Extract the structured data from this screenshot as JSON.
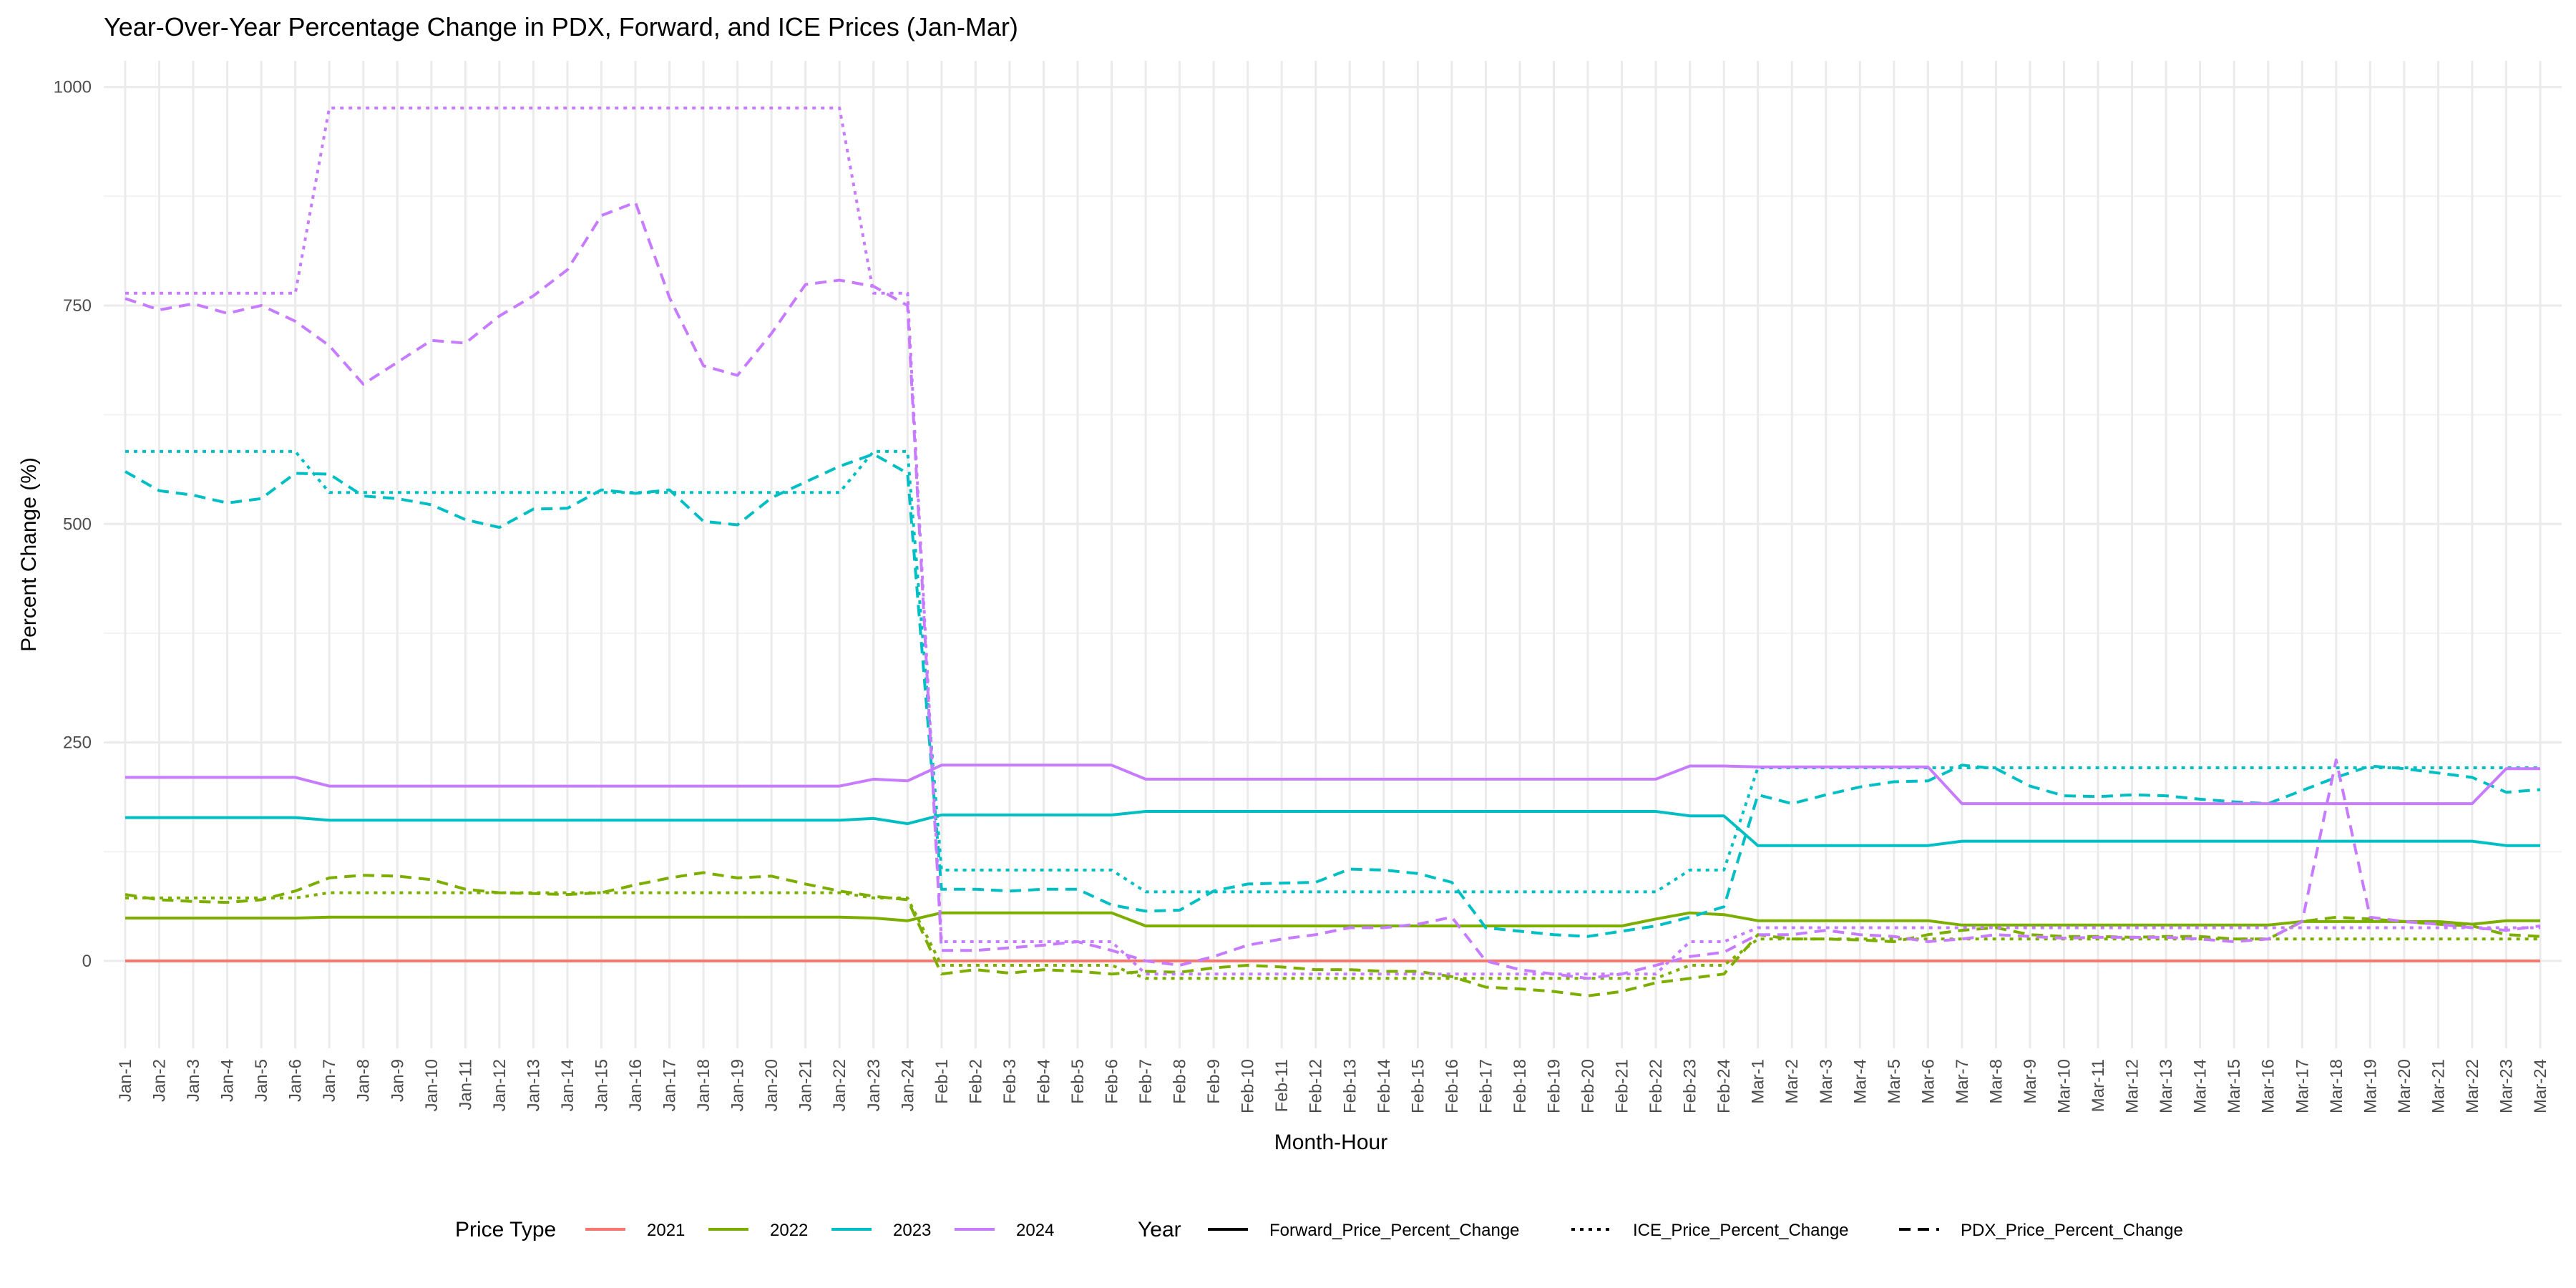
{
  "chart_data": {
    "type": "line",
    "title": "Year-Over-Year Percentage Change in PDX, Forward, and ICE Prices (Jan-Mar)",
    "xlabel": "Month-Hour",
    "ylabel": "Percent Change (%)",
    "x": [
      "Jan-1",
      "Jan-2",
      "Jan-3",
      "Jan-4",
      "Jan-5",
      "Jan-6",
      "Jan-7",
      "Jan-8",
      "Jan-9",
      "Jan-10",
      "Jan-11",
      "Jan-12",
      "Jan-13",
      "Jan-14",
      "Jan-15",
      "Jan-16",
      "Jan-17",
      "Jan-18",
      "Jan-19",
      "Jan-20",
      "Jan-21",
      "Jan-22",
      "Jan-23",
      "Jan-24",
      "Feb-1",
      "Feb-2",
      "Feb-3",
      "Feb-4",
      "Feb-5",
      "Feb-6",
      "Feb-7",
      "Feb-8",
      "Feb-9",
      "Feb-10",
      "Feb-11",
      "Feb-12",
      "Feb-13",
      "Feb-14",
      "Feb-15",
      "Feb-16",
      "Feb-17",
      "Feb-18",
      "Feb-19",
      "Feb-20",
      "Feb-21",
      "Feb-22",
      "Feb-23",
      "Feb-24",
      "Mar-1",
      "Mar-2",
      "Mar-3",
      "Mar-4",
      "Mar-5",
      "Mar-6",
      "Mar-7",
      "Mar-8",
      "Mar-9",
      "Mar-10",
      "Mar-11",
      "Mar-12",
      "Mar-13",
      "Mar-14",
      "Mar-15",
      "Mar-16",
      "Mar-17",
      "Mar-18",
      "Mar-19",
      "Mar-20",
      "Mar-21",
      "Mar-22",
      "Mar-23",
      "Mar-24"
    ],
    "ylim": [
      -100,
      1030
    ],
    "yticks": [
      0,
      250,
      500,
      750,
      1000
    ],
    "grid": true,
    "legend_position": "bottom",
    "legend": {
      "color_title": "Price Type",
      "linetype_title": "Year",
      "colors": [
        {
          "label": "2021",
          "color": "#F8766D"
        },
        {
          "label": "2022",
          "color": "#7CAE00"
        },
        {
          "label": "2023",
          "color": "#00BFC4"
        },
        {
          "label": "2024",
          "color": "#C77CFF"
        }
      ],
      "linetypes": [
        {
          "label": "Forward_Price_Percent_Change",
          "dash": "solid"
        },
        {
          "label": "ICE_Price_Percent_Change",
          "dash": "dotted"
        },
        {
          "label": "PDX_Price_Percent_Change",
          "dash": "dashed"
        }
      ]
    },
    "series": [
      {
        "year": "2021",
        "kind": "Forward_Price_Percent_Change",
        "color": "#F8766D",
        "dash": "solid",
        "values": [
          0,
          0,
          0,
          0,
          0,
          0,
          0,
          0,
          0,
          0,
          0,
          0,
          0,
          0,
          0,
          0,
          0,
          0,
          0,
          0,
          0,
          0,
          0,
          0,
          0,
          0,
          0,
          0,
          0,
          0,
          0,
          0,
          0,
          0,
          0,
          0,
          0,
          0,
          0,
          0,
          0,
          0,
          0,
          0,
          0,
          0,
          0,
          0,
          0,
          0,
          0,
          0,
          0,
          0,
          0,
          0,
          0,
          0,
          0,
          0,
          0,
          0,
          0,
          0,
          0,
          0,
          0,
          0,
          0,
          0,
          0,
          0
        ]
      },
      {
        "year": "2022",
        "kind": "Forward_Price_Percent_Change",
        "color": "#7CAE00",
        "dash": "solid",
        "values": [
          49,
          49,
          49,
          49,
          49,
          49,
          50,
          50,
          50,
          50,
          50,
          50,
          50,
          50,
          50,
          50,
          50,
          50,
          50,
          50,
          50,
          50,
          49,
          46,
          55,
          55,
          55,
          55,
          55,
          55,
          40,
          40,
          40,
          40,
          40,
          40,
          40,
          40,
          40,
          40,
          40,
          40,
          40,
          40,
          40,
          48,
          55,
          53,
          46,
          46,
          46,
          46,
          46,
          46,
          41,
          41,
          41,
          41,
          41,
          41,
          41,
          41,
          41,
          41,
          45,
          45,
          45,
          45,
          45,
          42,
          46,
          46
        ]
      },
      {
        "year": "2022",
        "kind": "ICE_Price_Percent_Change",
        "color": "#7CAE00",
        "dash": "dotted",
        "values": [
          72,
          72,
          72,
          72,
          72,
          72,
          78,
          78,
          78,
          78,
          78,
          78,
          78,
          78,
          78,
          78,
          78,
          78,
          78,
          78,
          78,
          78,
          72,
          72,
          -5,
          -5,
          -5,
          -5,
          -5,
          -5,
          -20,
          -20,
          -20,
          -20,
          -20,
          -20,
          -20,
          -20,
          -20,
          -20,
          -20,
          -20,
          -20,
          -20,
          -20,
          -20,
          -5,
          -5,
          25,
          25,
          25,
          25,
          25,
          25,
          25,
          25,
          25,
          25,
          25,
          25,
          25,
          25,
          25,
          25,
          25,
          25,
          25,
          25,
          25,
          25,
          25,
          25
        ]
      },
      {
        "year": "2022",
        "kind": "PDX_Price_Percent_Change",
        "color": "#7CAE00",
        "dash": "dashed",
        "values": [
          76,
          70,
          68,
          67,
          70,
          80,
          95,
          98,
          97,
          93,
          82,
          78,
          77,
          76,
          78,
          87,
          95,
          101,
          95,
          97,
          88,
          80,
          74,
          70,
          -15,
          -10,
          -14,
          -10,
          -12,
          -15,
          -12,
          -13,
          -8,
          -5,
          -7,
          -10,
          -10,
          -12,
          -12,
          -18,
          -30,
          -32,
          -35,
          -40,
          -35,
          -25,
          -20,
          -15,
          30,
          25,
          25,
          24,
          22,
          30,
          35,
          38,
          30,
          28,
          28,
          27,
          28,
          28,
          25,
          25,
          45,
          50,
          48,
          45,
          42,
          40,
          30,
          28
        ]
      },
      {
        "year": "2023",
        "kind": "Forward_Price_Percent_Change",
        "color": "#00BFC4",
        "dash": "solid",
        "values": [
          164,
          164,
          164,
          164,
          164,
          164,
          161,
          161,
          161,
          161,
          161,
          161,
          161,
          161,
          161,
          161,
          161,
          161,
          161,
          161,
          161,
          161,
          163,
          157,
          167,
          167,
          167,
          167,
          167,
          167,
          171,
          171,
          171,
          171,
          171,
          171,
          171,
          171,
          171,
          171,
          171,
          171,
          171,
          171,
          171,
          171,
          166,
          166,
          132,
          132,
          132,
          132,
          132,
          132,
          137,
          137,
          137,
          137,
          137,
          137,
          137,
          137,
          137,
          137,
          137,
          137,
          137,
          137,
          137,
          137,
          132,
          132
        ]
      },
      {
        "year": "2023",
        "kind": "ICE_Price_Percent_Change",
        "color": "#00BFC4",
        "dash": "dotted",
        "values": [
          583,
          583,
          583,
          583,
          583,
          583,
          536,
          536,
          536,
          536,
          536,
          536,
          536,
          536,
          536,
          536,
          536,
          536,
          536,
          536,
          536,
          536,
          583,
          583,
          104,
          104,
          104,
          104,
          104,
          104,
          79,
          79,
          79,
          79,
          79,
          79,
          79,
          79,
          79,
          79,
          79,
          79,
          79,
          79,
          79,
          79,
          104,
          104,
          221,
          221,
          221,
          221,
          221,
          221,
          221,
          221,
          221,
          221,
          221,
          221,
          221,
          221,
          221,
          221,
          221,
          221,
          221,
          221,
          221,
          221,
          221,
          221
        ]
      },
      {
        "year": "2023",
        "kind": "PDX_Price_Percent_Change",
        "color": "#00BFC4",
        "dash": "dashed",
        "values": [
          560,
          538,
          533,
          524,
          529,
          558,
          557,
          532,
          529,
          522,
          505,
          496,
          517,
          518,
          539,
          535,
          539,
          503,
          499,
          530,
          548,
          566,
          580,
          558,
          82,
          82,
          80,
          82,
          82,
          64,
          57,
          58,
          80,
          88,
          89,
          90,
          105,
          104,
          100,
          90,
          38,
          34,
          30,
          28,
          34,
          40,
          50,
          62,
          190,
          180,
          190,
          199,
          205,
          206,
          224,
          220,
          200,
          189,
          188,
          190,
          189,
          185,
          182,
          180,
          195,
          210,
          223,
          220,
          215,
          210,
          193,
          196
        ]
      },
      {
        "year": "2024",
        "kind": "Forward_Price_Percent_Change",
        "color": "#C77CFF",
        "dash": "solid",
        "values": [
          210,
          210,
          210,
          210,
          210,
          210,
          200,
          200,
          200,
          200,
          200,
          200,
          200,
          200,
          200,
          200,
          200,
          200,
          200,
          200,
          200,
          200,
          208,
          206,
          224,
          224,
          224,
          224,
          224,
          224,
          208,
          208,
          208,
          208,
          208,
          208,
          208,
          208,
          208,
          208,
          208,
          208,
          208,
          208,
          208,
          208,
          223,
          223,
          222,
          222,
          222,
          222,
          222,
          222,
          180,
          180,
          180,
          180,
          180,
          180,
          180,
          180,
          180,
          180,
          180,
          180,
          180,
          180,
          180,
          180,
          220,
          220
        ]
      },
      {
        "year": "2024",
        "kind": "ICE_Price_Percent_Change",
        "color": "#C77CFF",
        "dash": "dotted",
        "values": [
          764,
          764,
          764,
          764,
          764,
          764,
          976,
          976,
          976,
          976,
          976,
          976,
          976,
          976,
          976,
          976,
          976,
          976,
          976,
          976,
          976,
          976,
          764,
          764,
          22,
          22,
          22,
          22,
          22,
          22,
          -15,
          -15,
          -15,
          -15,
          -15,
          -15,
          -15,
          -15,
          -15,
          -15,
          -15,
          -15,
          -15,
          -15,
          -15,
          -15,
          22,
          22,
          38,
          38,
          38,
          38,
          38,
          38,
          38,
          38,
          38,
          38,
          38,
          38,
          38,
          38,
          38,
          38,
          38,
          38,
          38,
          38,
          38,
          38,
          38,
          38
        ]
      },
      {
        "year": "2024",
        "kind": "PDX_Price_Percent_Change",
        "color": "#C77CFF",
        "dash": "dashed",
        "values": [
          758,
          745,
          752,
          741,
          750,
          732,
          704,
          660,
          685,
          710,
          707,
          738,
          761,
          791,
          853,
          868,
          759,
          681,
          670,
          718,
          774,
          779,
          772,
          750,
          12,
          12,
          15,
          18,
          22,
          12,
          0,
          -5,
          5,
          18,
          25,
          30,
          38,
          38,
          42,
          50,
          0,
          -10,
          -15,
          -20,
          -15,
          -5,
          5,
          10,
          30,
          30,
          35,
          30,
          28,
          22,
          25,
          30,
          28,
          26,
          27,
          27,
          27,
          25,
          22,
          25,
          45,
          230,
          50,
          45,
          42,
          38,
          35,
          40
        ]
      }
    ]
  }
}
